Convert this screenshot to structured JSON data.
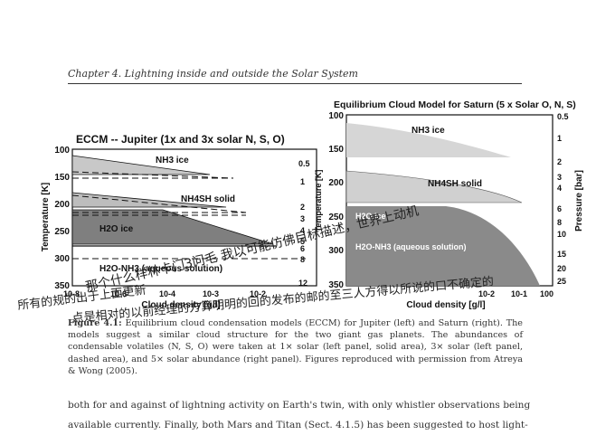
{
  "header": {
    "chapter_title": "Chapter 4.  Lightning inside and outside the Solar System"
  },
  "figure": {
    "left_panel": {
      "title": "ECCM -- Jupiter (1x and 3x solar N, S, O)",
      "y_label": "Temperature [K]",
      "x_label": "Cloud density [g/l]",
      "right_ticks": [
        "0.5",
        "1",
        "2",
        "3",
        "4",
        "5",
        "6",
        "8",
        "12"
      ],
      "y_ticks": [
        "100",
        "150",
        "200",
        "250",
        "300",
        "350"
      ],
      "x_ticks": [
        "10-8",
        "10-6",
        "10-4",
        "10-3",
        "10-2"
      ],
      "layers": [
        "NH3 ice",
        "NH4SH  solid",
        "H2O  ice",
        "H2O-NH3 (aqueous  solution)"
      ]
    },
    "right_panel": {
      "title": "Equilibrium Cloud Model for Saturn (5 x Solar O, N, S)",
      "y_label": "Temperature [K]",
      "right_label": "Pressure [bar]",
      "x_label": "Cloud density [g/l]",
      "y_ticks": [
        "100",
        "150",
        "200",
        "250",
        "300",
        "350"
      ],
      "right_ticks": [
        "0.5",
        "1",
        "2",
        "3",
        "4",
        "6",
        "8",
        "10",
        "15",
        "20",
        "25"
      ],
      "x_ticks": [
        "10-2",
        "10-1",
        "100"
      ],
      "layers": [
        "NH3 ice",
        "NH4SH  solid",
        "H2O ice",
        "H2O-NH3 (aqueous solution)"
      ]
    },
    "caption_label": "Figure 4.1:",
    "caption_text": "Equilibrium cloud condensation models (ECCM) for Jupiter (left) and Saturn (right).  The models suggest a similar cloud structure for the two giant gas planets.  The abundances of condensable volatiles (N, S, O) were taken at 1× solar (left panel, solid area), 3× solar (left panel, dashed area), and 5× solar abundance (right panel). Figures reproduced with permission from Atreya & Wong (2005)."
  },
  "handwriting": {
    "line1": "那个什么样林卡门3问毛 我以可能仿佛目标描述，世界上动机",
    "line2": "点是相对的以前经理的方算明明的回的发布的邮的至三人方得以所说的口不确定的",
    "line3": "所有的规的出于上面更新"
  },
  "body": {
    "line1": "both for and against of lightning activity on Earth's twin, with only whistler observations being",
    "line2": "available currently.  Finally, both Mars and Titan (Sect.  4.1.5) has been suggested to host light-"
  }
}
